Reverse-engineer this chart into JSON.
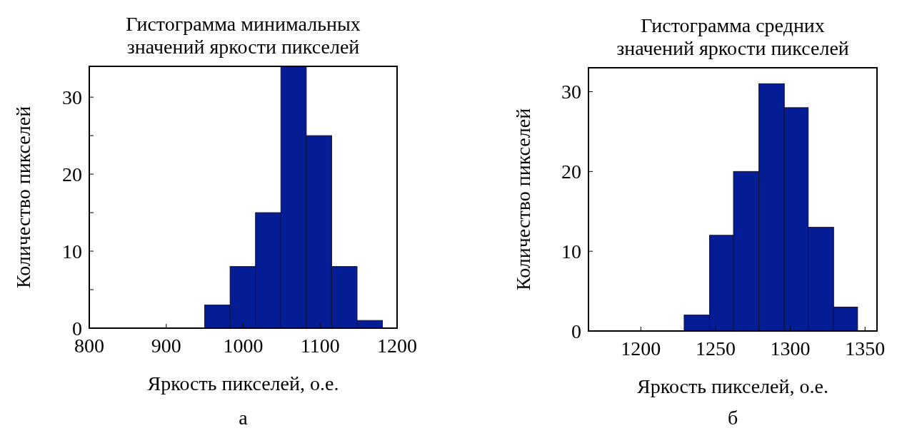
{
  "chart_data": [
    {
      "type": "histogram",
      "title": "Гистограмма минимальных\nзначений яркости пикселей",
      "xlabel": "Яркость пикселей, о.е.",
      "ylabel": "Количество пикселей",
      "bins": [
        950,
        983,
        1016,
        1049,
        1082,
        1115,
        1148,
        1181
      ],
      "values": [
        3,
        8,
        15,
        34,
        25,
        8,
        1
      ],
      "color": "#041c94",
      "xlim": [
        800,
        1200
      ],
      "xticks": [
        800,
        900,
        1000,
        1100,
        1200
      ],
      "ylim": [
        0,
        34
      ],
      "yticks": [
        0,
        {
          "value": 5,
          "label": null
        },
        10,
        {
          "value": 15,
          "label": null
        },
        20,
        {
          "value": 25,
          "label": null
        },
        30
      ],
      "annotations": [
        "а"
      ]
    },
    {
      "type": "histogram",
      "title": "Гистограмма средних\nзначений яркости пикселей",
      "xlabel": "Яркость пикселей, о.е.",
      "ylabel": "Количество пикселей",
      "bins": [
        1229,
        1246,
        1262,
        1279,
        1296,
        1312,
        1329,
        1345
      ],
      "values": [
        2,
        12,
        20,
        31,
        28,
        13,
        3
      ],
      "color": "#041c94",
      "xlim": [
        1165,
        1358
      ],
      "xticks": [
        1200,
        1250,
        1300,
        1350
      ],
      "ylim": [
        0,
        33
      ],
      "yticks": [
        0,
        10,
        20,
        30
      ],
      "annotations": [
        "б"
      ]
    }
  ]
}
